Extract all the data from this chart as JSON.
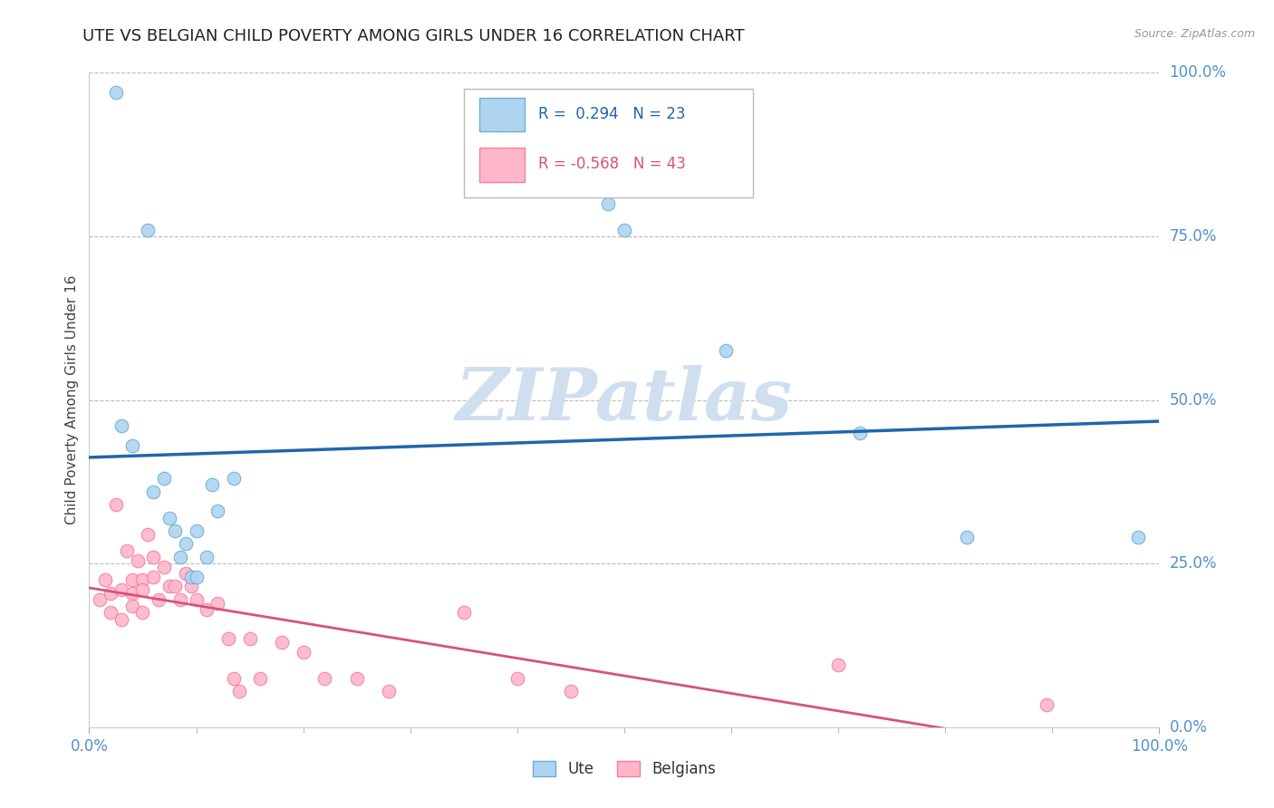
{
  "title": "UTE VS BELGIAN CHILD POVERTY AMONG GIRLS UNDER 16 CORRELATION CHART",
  "source": "Source: ZipAtlas.com",
  "ylabel": "Child Poverty Among Girls Under 16",
  "xlim": [
    0.0,
    1.0
  ],
  "ylim": [
    0.0,
    1.0
  ],
  "ytick_vals": [
    0.0,
    0.25,
    0.5,
    0.75,
    1.0
  ],
  "ytick_labels": [
    "0.0%",
    "25.0%",
    "50.0%",
    "75.0%",
    "100.0%"
  ],
  "xtick_vals": [
    0.0,
    1.0
  ],
  "xtick_labels": [
    "0.0%",
    "100.0%"
  ],
  "minor_xtick_vals": [
    0.1,
    0.2,
    0.3,
    0.4,
    0.5,
    0.6,
    0.7,
    0.8,
    0.9
  ],
  "grid_yticks": [
    0.25,
    0.5,
    0.75,
    1.0
  ],
  "ute_R": 0.294,
  "ute_N": 23,
  "belgian_R": -0.568,
  "belgian_N": 43,
  "ute_fill_color": "#AED4F0",
  "ute_edge_color": "#6BAED6",
  "belgian_fill_color": "#FFB6C8",
  "belgian_edge_color": "#F080A0",
  "ute_line_color": "#2166AC",
  "belgian_line_color": "#D6537A",
  "watermark_color": "#D0DFF0",
  "ute_points": [
    [
      0.025,
      0.97
    ],
    [
      0.03,
      0.46
    ],
    [
      0.04,
      0.43
    ],
    [
      0.055,
      0.76
    ],
    [
      0.06,
      0.36
    ],
    [
      0.07,
      0.38
    ],
    [
      0.075,
      0.32
    ],
    [
      0.08,
      0.3
    ],
    [
      0.085,
      0.26
    ],
    [
      0.09,
      0.28
    ],
    [
      0.095,
      0.23
    ],
    [
      0.1,
      0.23
    ],
    [
      0.1,
      0.3
    ],
    [
      0.11,
      0.26
    ],
    [
      0.115,
      0.37
    ],
    [
      0.12,
      0.33
    ],
    [
      0.135,
      0.38
    ],
    [
      0.485,
      0.8
    ],
    [
      0.5,
      0.76
    ],
    [
      0.595,
      0.575
    ],
    [
      0.72,
      0.45
    ],
    [
      0.82,
      0.29
    ],
    [
      0.98,
      0.29
    ]
  ],
  "belgian_points": [
    [
      0.01,
      0.195
    ],
    [
      0.015,
      0.225
    ],
    [
      0.02,
      0.205
    ],
    [
      0.02,
      0.175
    ],
    [
      0.025,
      0.34
    ],
    [
      0.03,
      0.21
    ],
    [
      0.03,
      0.165
    ],
    [
      0.035,
      0.27
    ],
    [
      0.04,
      0.225
    ],
    [
      0.04,
      0.205
    ],
    [
      0.04,
      0.185
    ],
    [
      0.045,
      0.255
    ],
    [
      0.05,
      0.225
    ],
    [
      0.05,
      0.21
    ],
    [
      0.05,
      0.175
    ],
    [
      0.055,
      0.295
    ],
    [
      0.06,
      0.26
    ],
    [
      0.06,
      0.23
    ],
    [
      0.065,
      0.195
    ],
    [
      0.07,
      0.245
    ],
    [
      0.075,
      0.215
    ],
    [
      0.08,
      0.215
    ],
    [
      0.085,
      0.195
    ],
    [
      0.09,
      0.235
    ],
    [
      0.095,
      0.215
    ],
    [
      0.1,
      0.195
    ],
    [
      0.11,
      0.18
    ],
    [
      0.12,
      0.19
    ],
    [
      0.13,
      0.135
    ],
    [
      0.135,
      0.075
    ],
    [
      0.14,
      0.055
    ],
    [
      0.15,
      0.135
    ],
    [
      0.16,
      0.075
    ],
    [
      0.18,
      0.13
    ],
    [
      0.2,
      0.115
    ],
    [
      0.22,
      0.075
    ],
    [
      0.25,
      0.075
    ],
    [
      0.28,
      0.055
    ],
    [
      0.35,
      0.175
    ],
    [
      0.4,
      0.075
    ],
    [
      0.45,
      0.055
    ],
    [
      0.7,
      0.095
    ],
    [
      0.895,
      0.035
    ]
  ]
}
